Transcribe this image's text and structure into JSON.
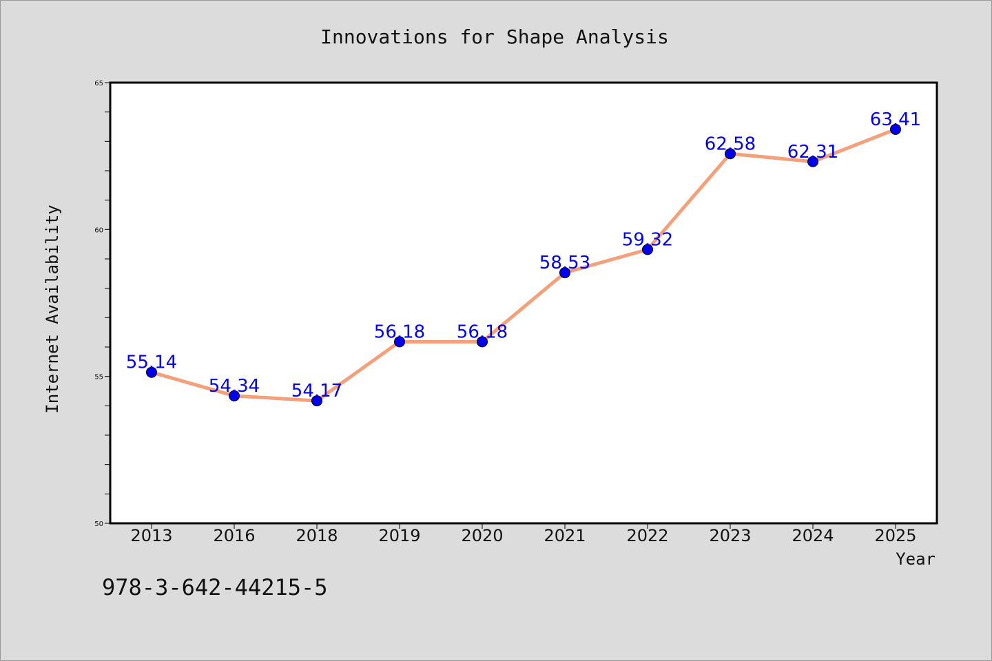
{
  "chart_data": {
    "type": "line",
    "title": "Innovations for Shape Analysis",
    "xlabel": "Year",
    "ylabel": "Internet Availability",
    "categories": [
      "2013",
      "2016",
      "2018",
      "2019",
      "2020",
      "2021",
      "2022",
      "2023",
      "2024",
      "2025"
    ],
    "series": [
      {
        "values": [
          55.14,
          54.34,
          54.17,
          56.18,
          56.18,
          58.53,
          59.32,
          62.58,
          62.31,
          63.41
        ],
        "labels": [
          "55.14",
          "54.34",
          "54.17",
          "56.18",
          "56.18",
          "58.53",
          "59.32",
          "62.58",
          "62.31",
          "63.41"
        ],
        "line_color": "#f4a07a",
        "marker_color": "#0000ee"
      }
    ],
    "ylim": [
      50,
      65
    ],
    "yticks": [
      {
        "value": 50,
        "label": "50"
      },
      {
        "value": 55,
        "label": "55"
      },
      {
        "value": 60,
        "label": "60"
      },
      {
        "value": 65,
        "label": "65"
      }
    ],
    "yminor_step": 1,
    "grid": false,
    "legend": "none"
  },
  "annotation": {
    "text": "978-3-642-44215-5"
  },
  "colors": {
    "background": "#dcdcdc",
    "plot_background": "#ffffff",
    "axis": "#000000"
  }
}
